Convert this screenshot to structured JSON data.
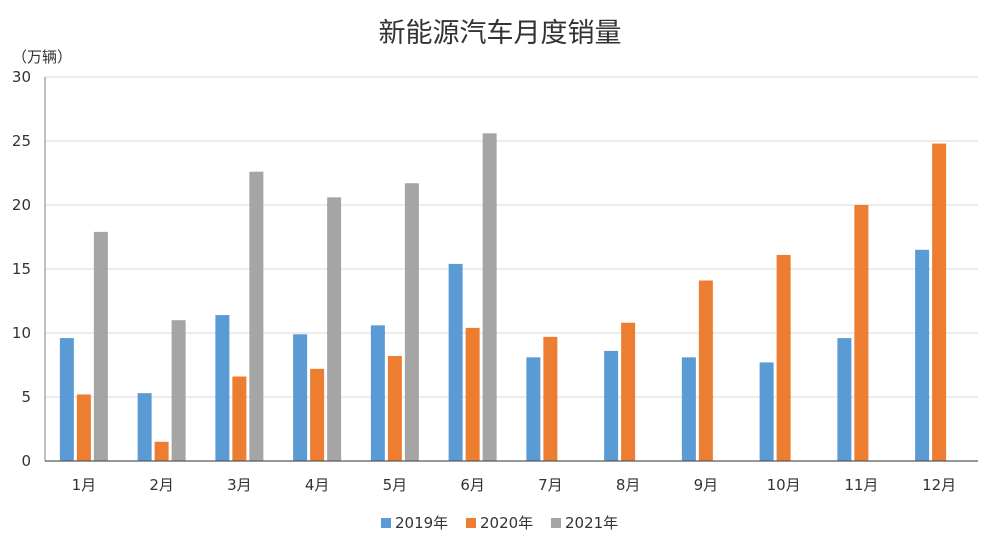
{
  "chart_data": {
    "type": "bar",
    "title": "新能源汽车月度销量",
    "ylabel": "（万辆）",
    "xlabel": "",
    "ylim": [
      0,
      30
    ],
    "yticks": [
      0,
      5,
      10,
      15,
      20,
      25,
      30
    ],
    "grid": true,
    "legend_position": "bottom",
    "categories": [
      "1月",
      "2月",
      "3月",
      "4月",
      "5月",
      "6月",
      "7月",
      "8月",
      "9月",
      "10月",
      "11月",
      "12月"
    ],
    "series": [
      {
        "name": "2019年",
        "color": "#5b9bd5",
        "values": [
          9.6,
          5.3,
          11.4,
          9.9,
          10.6,
          15.4,
          8.1,
          8.6,
          8.1,
          7.7,
          9.6,
          16.5
        ]
      },
      {
        "name": "2020年",
        "color": "#ed7d31",
        "values": [
          5.2,
          1.5,
          6.6,
          7.2,
          8.2,
          10.4,
          9.7,
          10.8,
          14.1,
          16.1,
          20.0,
          24.8
        ]
      },
      {
        "name": "2021年",
        "color": "#a5a5a5",
        "values": [
          17.9,
          11.0,
          22.6,
          20.6,
          21.7,
          25.6,
          null,
          null,
          null,
          null,
          null,
          null
        ]
      }
    ]
  }
}
